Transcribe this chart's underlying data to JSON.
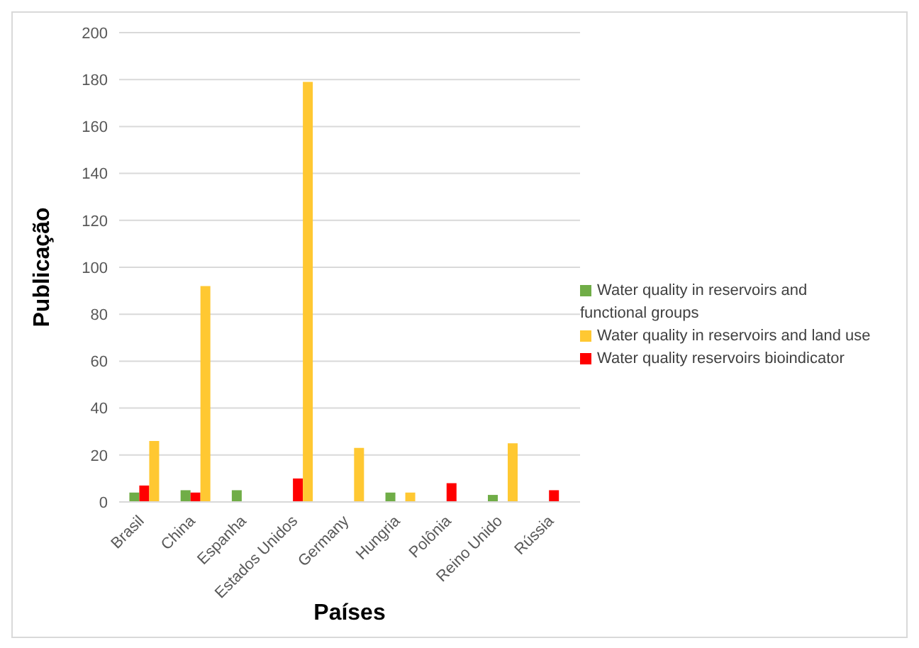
{
  "chart_data": {
    "type": "bar",
    "xlabel": "Países",
    "ylabel": "Publicação",
    "categories": [
      "Brasil",
      "China",
      "Espanha",
      "Estados Unidos",
      "Germany",
      "Hungria",
      "Polônia",
      "Reino Unido",
      "Rússia"
    ],
    "series": [
      {
        "name": "Water quality in reservoirs and functional groups",
        "color": "#70ad47",
        "values": [
          4,
          5,
          5,
          null,
          null,
          4,
          null,
          3,
          null
        ]
      },
      {
        "name": "Water quality reservoirs bioindicator",
        "color": "#ff0000",
        "values": [
          7,
          4,
          null,
          10,
          null,
          null,
          8,
          null,
          5
        ]
      },
      {
        "name": "Water quality in reservoirs and land use",
        "color": "#ffc832",
        "values": [
          26,
          92,
          null,
          179,
          23,
          4,
          null,
          25,
          null
        ]
      }
    ],
    "ylim": [
      0,
      200
    ],
    "yticks": [
      0,
      20,
      40,
      60,
      80,
      100,
      120,
      140,
      160,
      180,
      200
    ],
    "grid": "y",
    "legend": "right"
  }
}
